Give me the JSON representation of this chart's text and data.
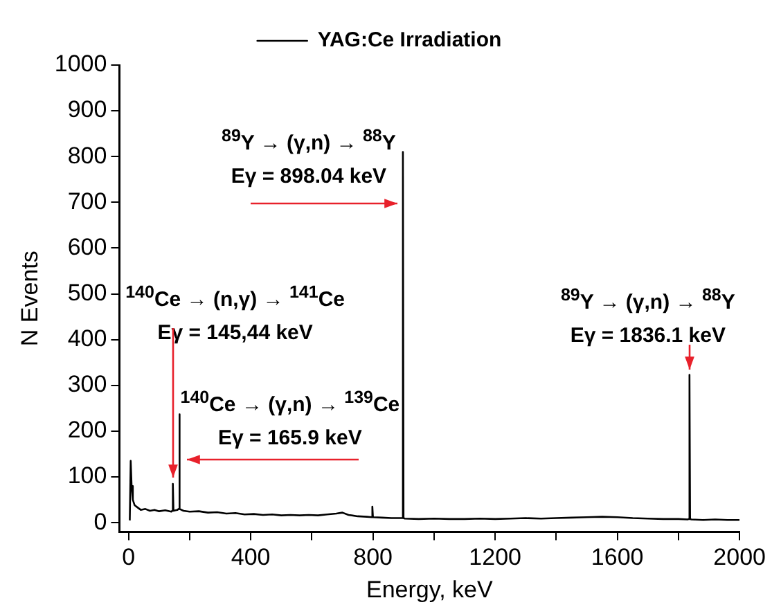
{
  "chart_data": {
    "type": "line",
    "xlabel": "Energy, keV",
    "ylabel": "N Events",
    "legend": "top",
    "grid": false,
    "marker": "none",
    "line_style": "solid",
    "xlim": [
      -30,
      2000
    ],
    "ylim": [
      -20,
      1000
    ],
    "xticks": [
      0,
      {
        "value": 200,
        "label": null
      },
      400,
      {
        "value": 600,
        "label": null
      },
      800,
      {
        "value": 1000,
        "label": null
      },
      1200,
      {
        "value": 1400,
        "label": null
      },
      1600,
      {
        "value": 1800,
        "label": null
      },
      2000
    ],
    "yticks": [
      0,
      100,
      200,
      300,
      400,
      500,
      600,
      700,
      800,
      900,
      1000
    ],
    "series": [
      {
        "name": "YAG:Ce Irradiation",
        "color": "#000000",
        "x": [
          4,
          7,
          10,
          14,
          20,
          30,
          40,
          55,
          70,
          85,
          100,
          120,
          140,
          143,
          145,
          147,
          160,
          164,
          166,
          168,
          180,
          200,
          230,
          260,
          290,
          320,
          350,
          380,
          410,
          440,
          470,
          500,
          530,
          560,
          590,
          620,
          650,
          680,
          700,
          720,
          750,
          780,
          796,
          798,
          800,
          830,
          860,
          890,
          896,
          898,
          900,
          904,
          950,
          1000,
          1050,
          1100,
          1150,
          1200,
          1250,
          1300,
          1350,
          1400,
          1450,
          1500,
          1550,
          1600,
          1650,
          1700,
          1750,
          1800,
          1830,
          1834,
          1836,
          1838,
          1842,
          1880,
          1920,
          1960,
          2000
        ],
        "values": [
          5,
          135,
          80,
          50,
          38,
          33,
          28,
          30,
          26,
          28,
          25,
          27,
          24,
          26,
          85,
          26,
          28,
          30,
          237,
          30,
          26,
          24,
          25,
          22,
          23,
          20,
          21,
          18,
          19,
          17,
          18,
          16,
          17,
          16,
          17,
          16,
          18,
          20,
          22,
          17,
          14,
          13,
          12,
          35,
          12,
          11,
          10,
          10,
          10,
          810,
          10,
          9,
          8,
          9,
          8,
          8,
          9,
          8,
          9,
          10,
          9,
          10,
          11,
          12,
          13,
          12,
          10,
          9,
          8,
          8,
          7,
          8,
          323,
          8,
          7,
          6,
          7,
          6,
          6
        ]
      }
    ],
    "annotations": [
      {
        "text": "$^{89}$Y → (γ,n) → $^{88}$Y\nEγ = 898.04 keV",
        "x": 898,
        "y": 810
      },
      {
        "text": "$^{89}$Y → (γ,n) → $^{88}$Y\nEγ = 1836.1 keV",
        "x": 1836,
        "y": 323
      },
      {
        "text": "$^{140}$Ce → (n,γ) → $^{141}$Ce\nEγ = 145,44 keV",
        "x": 145,
        "y": 85
      },
      {
        "text": "$^{140}$Ce → (γ,n) → $^{139}$Ce\nEγ = 165.9 keV",
        "x": 166,
        "y": 237
      }
    ]
  }
}
